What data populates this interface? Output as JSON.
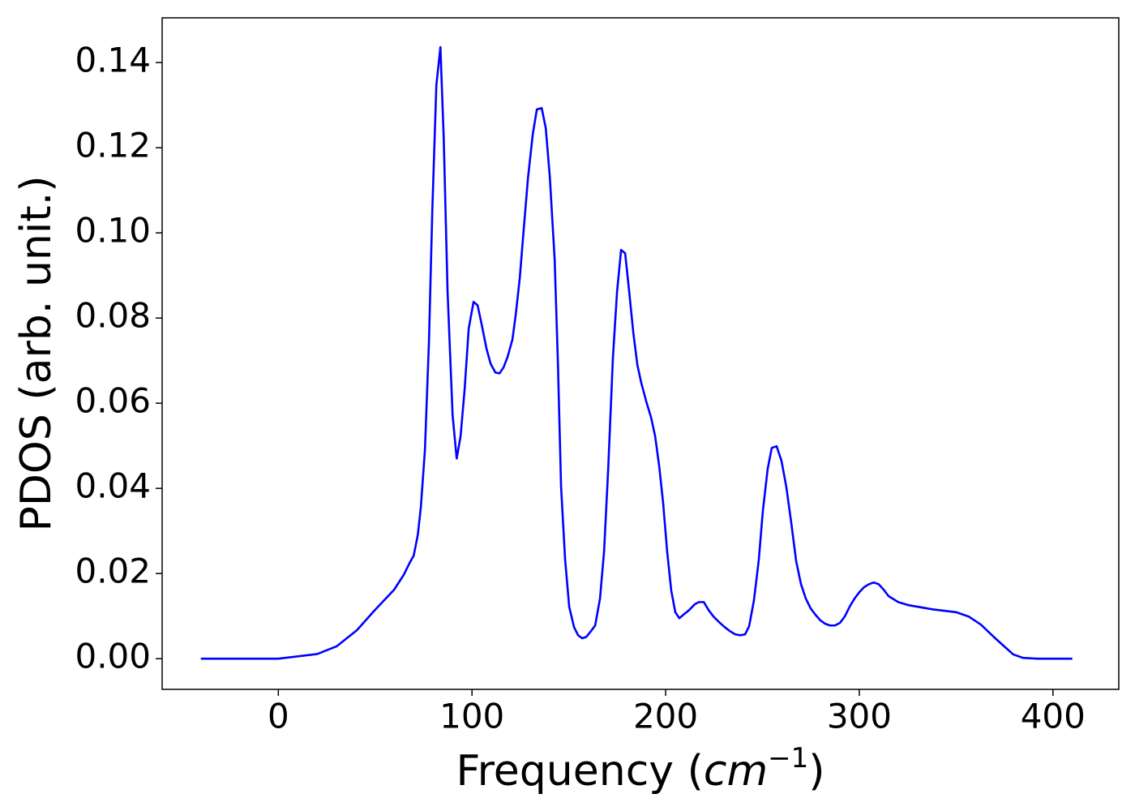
{
  "chart_data": {
    "type": "line",
    "xlabel": [
      "Frequency (",
      "cm",
      "−1",
      ")"
    ],
    "ylabel": "PDOS (arb. unit.)",
    "x": [
      -40,
      -20,
      0,
      20.1,
      30.1,
      40.6,
      49.8,
      59.8,
      64.9,
      67.8,
      69.9,
      72.0,
      73.6,
      75.7,
      77.8,
      79.5,
      81.6,
      83.7,
      85.4,
      87.4,
      90.0,
      92.1,
      94.1,
      96.2,
      98.3,
      100.8,
      102.9,
      105.0,
      107.5,
      109.6,
      112.1,
      114.2,
      116.3,
      118.4,
      120.9,
      122.6,
      124.7,
      126.8,
      128.9,
      131.4,
      133.5,
      136.0,
      138.1,
      140.2,
      142.7,
      144.4,
      146.0,
      148.1,
      150.2,
      152.7,
      154.8,
      156.9,
      159.0,
      161.5,
      163.6,
      166.1,
      168.2,
      170.3,
      172.8,
      174.9,
      177.0,
      179.1,
      181.2,
      183.3,
      185.4,
      187.4,
      190.0,
      192.5,
      194.6,
      196.7,
      198.7,
      200.8,
      202.9,
      205.0,
      207.1,
      209.6,
      212.1,
      215.1,
      217.2,
      219.7,
      222.2,
      224.7,
      227.6,
      230.5,
      233.1,
      236.0,
      238.5,
      241.0,
      243.1,
      245.6,
      248.1,
      250.2,
      252.7,
      254.8,
      257.3,
      259.8,
      262.3,
      264.9,
      267.4,
      269.9,
      272.4,
      274.9,
      277.4,
      279.9,
      282.4,
      284.9,
      287.4,
      290.0,
      292.5,
      295.0,
      297.5,
      300.0,
      302.5,
      305.0,
      307.5,
      310.0,
      312.6,
      315.1,
      320.1,
      325.1,
      337.7,
      350.2,
      356.5,
      362.8,
      369.0,
      375.3,
      379.5,
      384.5,
      392,
      410
    ],
    "series": [
      {
        "color": "#0000ff",
        "values": [
          0,
          0,
          0,
          0.0011,
          0.0029,
          0.0067,
          0.0114,
          0.0162,
          0.0198,
          0.0225,
          0.0242,
          0.029,
          0.0356,
          0.049,
          0.0747,
          0.1051,
          0.1347,
          0.1436,
          0.1223,
          0.0861,
          0.0571,
          0.047,
          0.0522,
          0.0632,
          0.0775,
          0.0838,
          0.083,
          0.0785,
          0.0728,
          0.0693,
          0.0672,
          0.067,
          0.0684,
          0.0709,
          0.075,
          0.0808,
          0.0895,
          0.1013,
          0.1128,
          0.1232,
          0.129,
          0.1293,
          0.1246,
          0.1131,
          0.0937,
          0.069,
          0.0404,
          0.0232,
          0.0122,
          0.0074,
          0.0055,
          0.0048,
          0.0051,
          0.0065,
          0.0078,
          0.0141,
          0.0251,
          0.0442,
          0.0709,
          0.0861,
          0.096,
          0.0952,
          0.0861,
          0.0766,
          0.069,
          0.0648,
          0.0604,
          0.0566,
          0.0522,
          0.0451,
          0.0366,
          0.0251,
          0.016,
          0.0109,
          0.0095,
          0.0105,
          0.0114,
          0.0128,
          0.0133,
          0.0133,
          0.0114,
          0.0099,
          0.0086,
          0.0074,
          0.0065,
          0.0057,
          0.0055,
          0.0057,
          0.0076,
          0.0137,
          0.0232,
          0.0347,
          0.0446,
          0.0495,
          0.0499,
          0.0465,
          0.0404,
          0.0318,
          0.0229,
          0.0175,
          0.0141,
          0.0118,
          0.0103,
          0.009,
          0.0082,
          0.0078,
          0.0078,
          0.0084,
          0.0099,
          0.0122,
          0.0141,
          0.0156,
          0.0168,
          0.0175,
          0.0179,
          0.0175,
          0.0162,
          0.0147,
          0.0133,
          0.0126,
          0.0116,
          0.0109,
          0.0099,
          0.008,
          0.0053,
          0.0027,
          0.001,
          0.0002,
          0,
          0
        ]
      }
    ],
    "xlim": [
      -60,
      434
    ],
    "xticks": [
      0,
      100,
      200,
      300,
      400
    ],
    "ylim": [
      -0.0072,
      0.1505
    ],
    "yticks": [
      {
        "value": 0,
        "label": "0.00"
      },
      {
        "value": 0.02,
        "label": "0.02"
      },
      {
        "value": 0.04,
        "label": "0.04"
      },
      {
        "value": 0.06,
        "label": "0.06"
      },
      {
        "value": 0.08,
        "label": "0.08"
      },
      {
        "value": 0.1,
        "label": "0.10"
      },
      {
        "value": 0.12,
        "label": "0.12"
      },
      {
        "value": 0.14,
        "label": "0.14"
      }
    ],
    "grid": false
  }
}
